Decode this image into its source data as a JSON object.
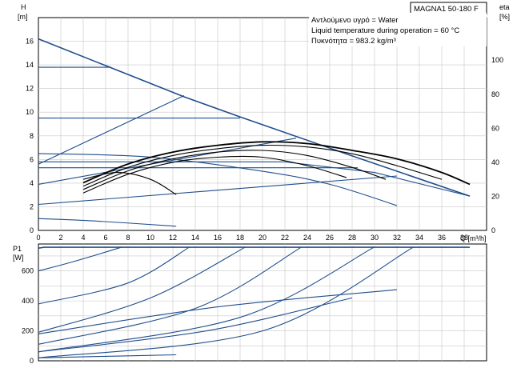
{
  "colors": {
    "curve_blue": "#1f4e8c",
    "eta_black": "#000000",
    "grid": "#c8c8c8"
  },
  "header": {
    "model": "MAGNA1 50-180 F",
    "info_lines": [
      "Αντλούμενο υγρό = Water",
      "Liquid temperature during operation = 60 °C",
      "Πυκνότητα = 983.2 kg/m³"
    ]
  },
  "chart_data": [
    {
      "type": "line",
      "id": "head",
      "y_label": "H",
      "y_unit": "[m]",
      "x_label": "Q [m³/h]",
      "xlim": [
        0,
        40
      ],
      "ylim": [
        0,
        18
      ],
      "x_ticks": [
        "0",
        "2",
        "4",
        "6",
        "8",
        "10",
        "12",
        "14",
        "16",
        "18",
        "20",
        "22",
        "24",
        "26",
        "28",
        "30",
        "32",
        "34",
        "36",
        "38"
      ],
      "y_ticks": [
        "0",
        "2",
        "4",
        "6",
        "8",
        "10",
        "12",
        "14",
        "16"
      ],
      "right_axis": {
        "label": "eta",
        "unit": "[%]",
        "ylim": [
          0,
          125
        ],
        "ticks": [
          "0",
          "20",
          "40",
          "60",
          "80",
          "100"
        ]
      },
      "grid": true,
      "series": [
        {
          "role": "max-curve",
          "x": [
            0,
            13,
            18,
            28,
            38.5
          ],
          "y": [
            16.2,
            11.3,
            9.6,
            6.3,
            2.9
          ]
        },
        {
          "role": "const-curve",
          "x": [
            0,
            6.5
          ],
          "y": [
            13.8,
            13.8
          ]
        },
        {
          "role": "const-curve",
          "x": [
            0,
            18
          ],
          "y": [
            9.5,
            9.5
          ]
        },
        {
          "role": "const-curve",
          "x": [
            0,
            28.5
          ],
          "y": [
            5.3,
            5.3
          ]
        },
        {
          "role": "prop-curve",
          "x": [
            0,
            13
          ],
          "y": [
            5.6,
            11.4
          ]
        },
        {
          "role": "prop-curve",
          "x": [
            0,
            23
          ],
          "y": [
            3.9,
            7.8
          ]
        },
        {
          "role": "prop-curve",
          "x": [
            0,
            32
          ],
          "y": [
            2.2,
            4.6
          ]
        },
        {
          "role": "autoadapt-limit",
          "x": [
            0,
            13,
            22,
            30,
            38.5
          ],
          "y": [
            5.8,
            5.8,
            5.8,
            4.9,
            2.9
          ]
        },
        {
          "role": "min-curve",
          "x": [
            0,
            10,
            20,
            26,
            32
          ],
          "y": [
            6.5,
            6.2,
            5.0,
            3.9,
            2.1
          ]
        },
        {
          "role": "min-curve",
          "x": [
            0,
            5,
            12.3
          ],
          "y": [
            1.0,
            0.8,
            0.35
          ]
        }
      ],
      "eta_series": [
        {
          "x": [
            4,
            8,
            12,
            16,
            20,
            24,
            28,
            32,
            36,
            38.5
          ],
          "y": [
            28,
            39,
            46,
            50,
            52,
            51,
            47,
            42,
            34,
            27
          ]
        },
        {
          "x": [
            4,
            8,
            12,
            16,
            20,
            24,
            28,
            32,
            36
          ],
          "y": [
            26,
            37,
            44,
            48,
            50,
            49,
            45,
            38,
            30
          ]
        },
        {
          "x": [
            4,
            8,
            12,
            16,
            20,
            24,
            28,
            31
          ],
          "y": [
            24,
            35,
            42,
            46,
            47,
            44,
            37,
            30
          ]
        },
        {
          "x": [
            4,
            8,
            12,
            16,
            20,
            24,
            27.5
          ],
          "y": [
            22,
            33,
            40,
            43,
            43,
            38,
            31
          ]
        },
        {
          "x": [
            4,
            7,
            10,
            12.3
          ],
          "y": [
            30,
            34,
            30,
            21
          ]
        }
      ]
    },
    {
      "type": "line",
      "id": "power",
      "y_label": "P1",
      "y_unit": "[W]",
      "xlim": [
        0,
        40
      ],
      "ylim": [
        0,
        780
      ],
      "y_ticks": [
        "0",
        "200",
        "400",
        "600"
      ],
      "grid": true,
      "series": [
        {
          "role": "max-curve",
          "x": [
            0,
            0.5,
            38.5
          ],
          "y": [
            752,
            758,
            758
          ]
        },
        {
          "role": "const-curve",
          "x": [
            0,
            3,
            7.5
          ],
          "y": [
            600,
            660,
            760
          ]
        },
        {
          "role": "const-curve",
          "x": [
            0,
            8,
            13.5
          ],
          "y": [
            380,
            520,
            760
          ]
        },
        {
          "role": "const-curve",
          "x": [
            0,
            10,
            18.5
          ],
          "y": [
            190,
            420,
            760
          ]
        },
        {
          "role": "const-curve",
          "x": [
            0,
            14,
            23.5
          ],
          "y": [
            110,
            350,
            760
          ]
        },
        {
          "role": "const-curve",
          "x": [
            0,
            18,
            30
          ],
          "y": [
            60,
            290,
            760
          ]
        },
        {
          "role": "const-curve",
          "x": [
            0,
            20,
            33.5
          ],
          "y": [
            20,
            200,
            760
          ]
        },
        {
          "role": "prop-curve",
          "x": [
            0,
            16,
            32
          ],
          "y": [
            180,
            360,
            475
          ]
        },
        {
          "role": "prop-curve",
          "x": [
            0,
            15,
            28
          ],
          "y": [
            60,
            200,
            420
          ]
        },
        {
          "role": "min-curve",
          "x": [
            0,
            6,
            12.3
          ],
          "y": [
            20,
            30,
            40
          ]
        }
      ]
    }
  ]
}
